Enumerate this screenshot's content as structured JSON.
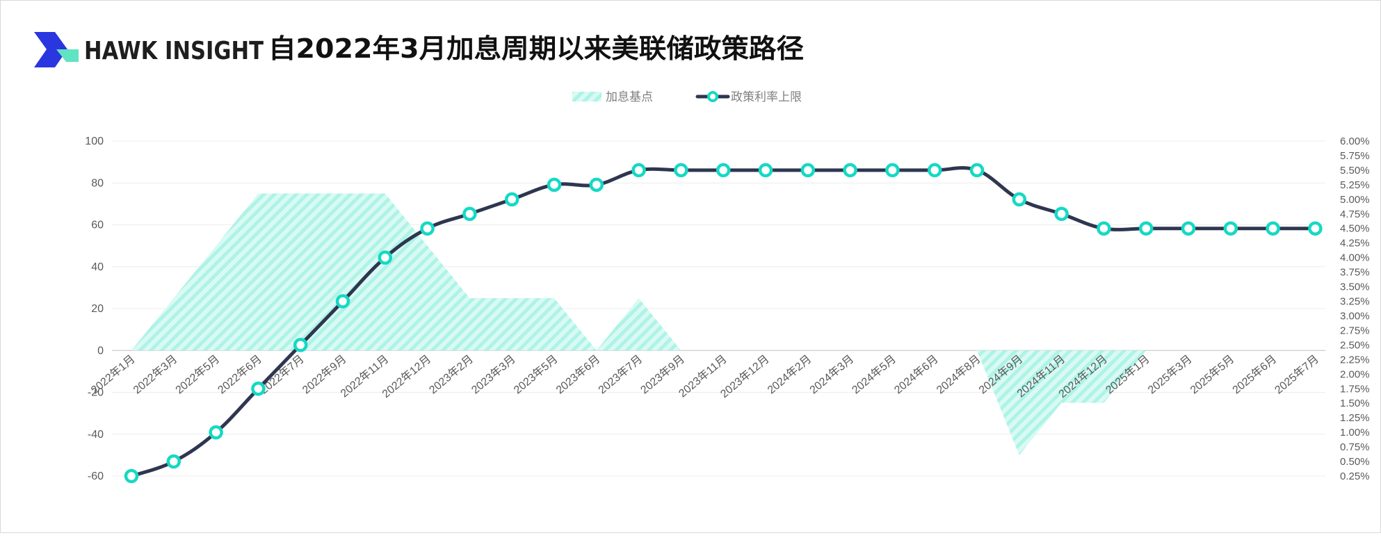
{
  "brand": {
    "name": "HAWK INSIGHT"
  },
  "colors": {
    "line": "#2e3650",
    "marker": "#15d9c4",
    "area": "#9ef1e3",
    "grid": "#ececec",
    "brand_dark": "#2a36e0",
    "brand_light": "#5fe3c2"
  },
  "chart_data": {
    "type": "area+line",
    "title": "自2022年3月加息周期以来美联储政策路径",
    "legend": {
      "position": "top-center"
    },
    "grid": true,
    "categories": [
      "2022年1月",
      "2022年3月",
      "2022年5月",
      "2022年6月",
      "2022年7月",
      "2022年9月",
      "2022年11月",
      "2022年12月",
      "2023年2月",
      "2023年3月",
      "2023年5月",
      "2023年6月",
      "2023年7月",
      "2023年9月",
      "2023年11月",
      "2023年12月",
      "2024年2月",
      "2024年3月",
      "2024年5月",
      "2024年6月",
      "2024年8月",
      "2024年9月",
      "2024年11月",
      "2024年12月",
      "2025年1月",
      "2025年3月",
      "2025年5月",
      "2025年6月",
      "2025年7月"
    ],
    "series": [
      {
        "name": "加息基点",
        "type": "area",
        "axis": "left",
        "values": [
          0,
          25,
          50,
          75,
          75,
          75,
          75,
          50,
          25,
          25,
          25,
          0,
          25,
          0,
          0,
          0,
          0,
          0,
          0,
          0,
          0,
          -50,
          -25,
          -25,
          0,
          0,
          0,
          0,
          0
        ]
      },
      {
        "name": "政策利率上限",
        "type": "line",
        "axis": "right",
        "values": [
          0.25,
          0.5,
          1.0,
          1.75,
          2.5,
          3.25,
          4.0,
          4.5,
          4.75,
          5.0,
          5.25,
          5.25,
          5.5,
          5.5,
          5.5,
          5.5,
          5.5,
          5.5,
          5.5,
          5.5,
          5.5,
          5.0,
          4.75,
          4.5,
          4.5,
          4.5,
          4.5,
          4.5,
          4.5
        ]
      }
    ],
    "y_left": {
      "min": -60,
      "max": 100,
      "ticks": [
        "100",
        "80",
        "60",
        "40",
        "20",
        "0",
        "-20",
        "-40",
        "-60"
      ]
    },
    "y_right": {
      "min": 0.25,
      "max": 6.0,
      "ticks": [
        "6.00%",
        "5.75%",
        "5.50%",
        "5.25%",
        "5.00%",
        "4.75%",
        "4.50%",
        "4.25%",
        "4.00%",
        "3.75%",
        "3.50%",
        "3.25%",
        "3.00%",
        "2.75%",
        "2.50%",
        "2.25%",
        "2.00%",
        "1.75%",
        "1.50%",
        "1.25%",
        "1.00%",
        "0.75%",
        "0.50%",
        "0.25%"
      ]
    }
  }
}
